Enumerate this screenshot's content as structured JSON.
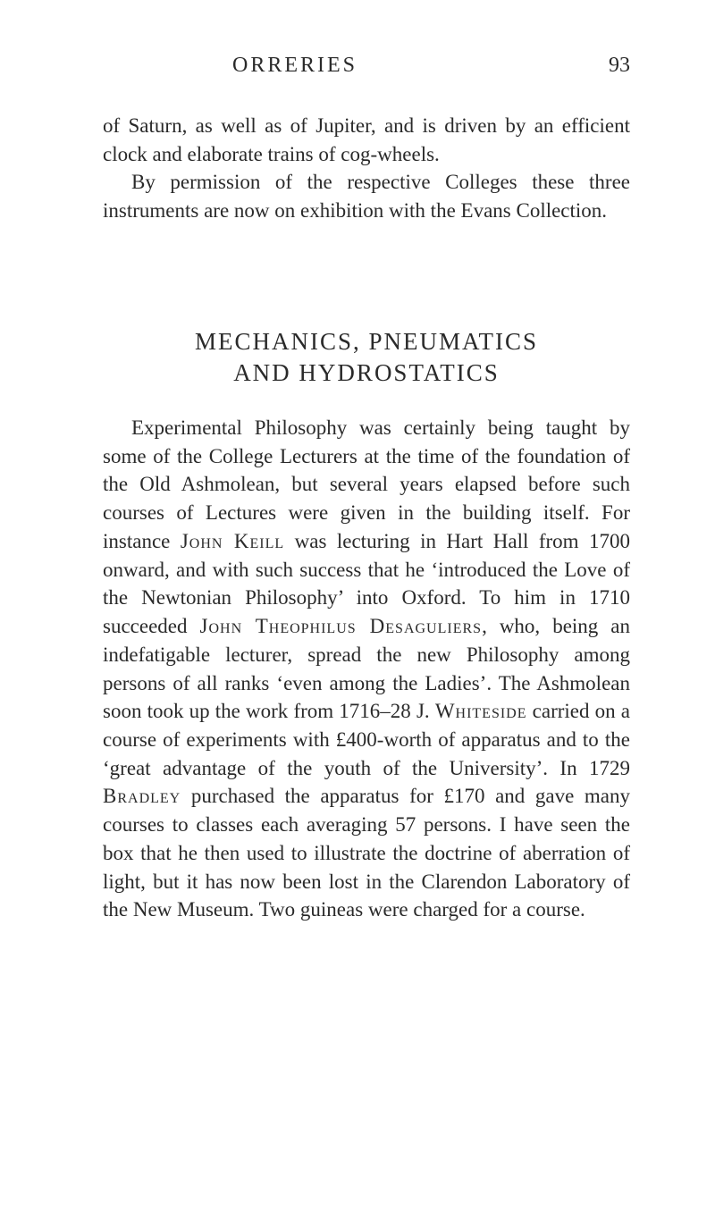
{
  "page": {
    "running_head": "ORRERIES",
    "page_number": "93",
    "background_color": "#ffffff",
    "text_color": "#2a2a2a",
    "body_fontsize": 23,
    "title_fontsize": 27,
    "header_fontsize": 24,
    "line_height": 1.38,
    "font_family": "Georgia, 'Times New Roman', serif"
  },
  "paragraphs": {
    "p1": "of Saturn, as well as of Jupiter, and is driven by an efficient clock and elaborate trains of cog-wheels.",
    "p2": "By permission of the respective Colleges these three instruments are now on exhibition with the Evans Collection."
  },
  "section": {
    "title_line1": "MECHANICS, PNEUMATICS",
    "title_line2": "AND HYDROSTATICS"
  },
  "body": {
    "seg1": "Experimental Philosophy was certainly being taught by some of the College Lecturers at the time of the foundation of the Old Ashmolean, but several years elapsed before such courses of Lec­tures were given in the building itself. For instance ",
    "name1": "John Keill",
    "seg2": " was lecturing in Hart Hall from 1700 onward, and with such success that he ‘introduced the Love of the Newtonian Philosophy’ into Oxford. To him in 1710 succeeded ",
    "name2": "John Theophilus Desaguliers",
    "seg3": ", who, being an indefatig­able lecturer, spread the new Philosophy among persons of all ranks ‘even among the Ladies’. The Ashmolean soon took up the work from 1716–28 J. ",
    "name3": "Whiteside",
    "seg4": " carried on a course of experiments with £400-worth of apparatus and to the ‘great advantage of the youth of the University’. In 1729 ",
    "name4": "Bradley",
    "seg5": " purchased the apparatus for £170 and gave many courses to classes each averaging 57 persons. I have seen the box that he then used to illustrate the doctrine of aberration of light, but it has now been lost in the Clarendon Labora­tory of the New Museum. Two guineas were charged for a course."
  }
}
